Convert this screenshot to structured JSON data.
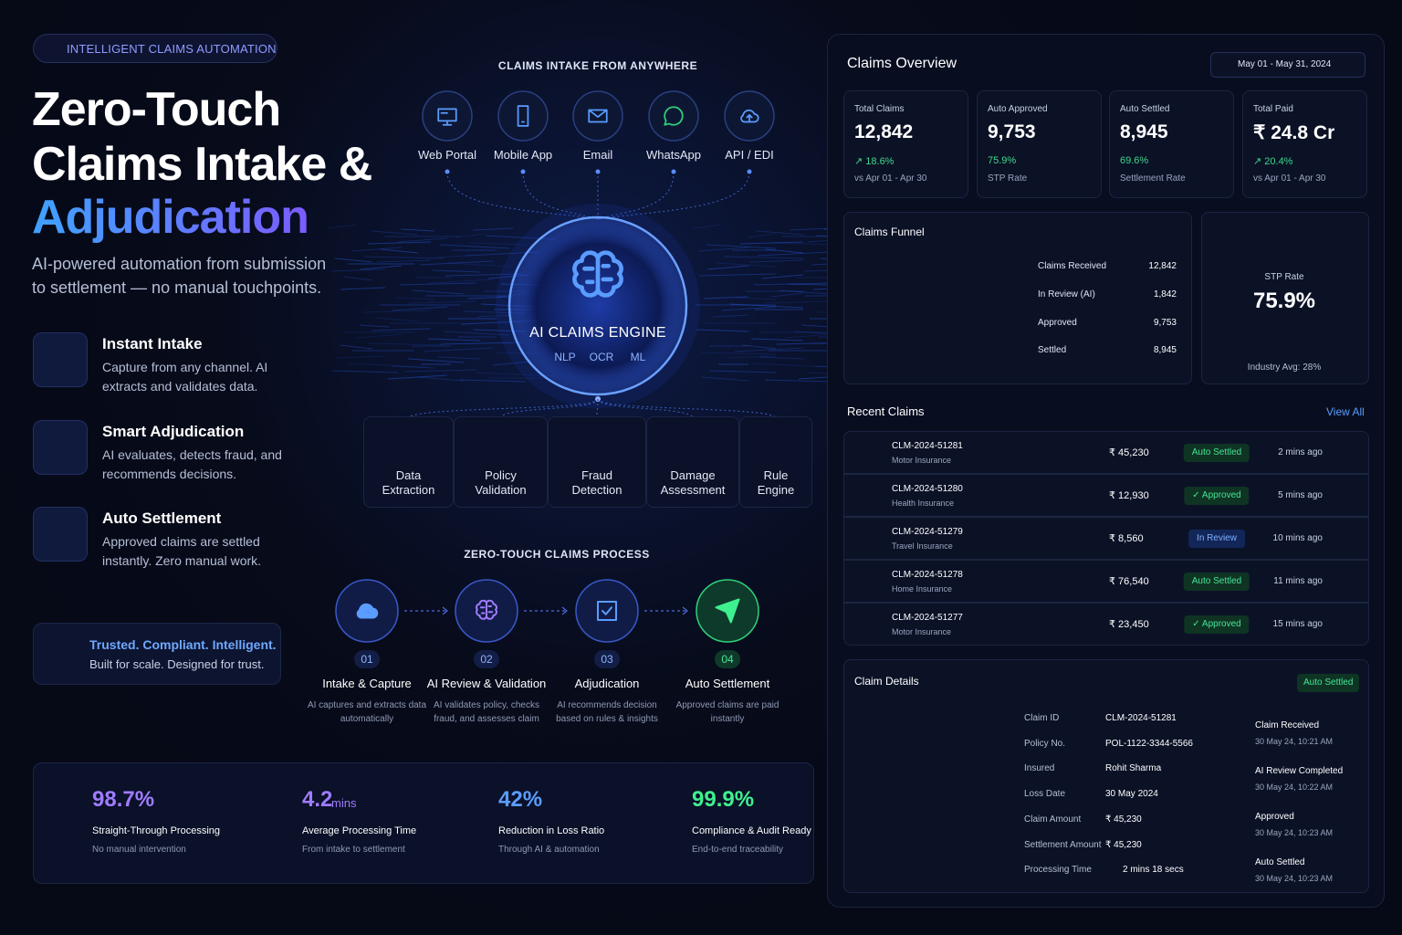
{
  "badge": "INTELLIGENT CLAIMS AUTOMATION",
  "hero": {
    "title_line1": "Zero-Touch",
    "title_line2": "Claims Intake &",
    "title_highlight": "Adjudication",
    "subtitle": "AI-powered automation from submission to settlement — no manual touchpoints."
  },
  "features": [
    {
      "title": "Instant Intake",
      "text": "Capture from any channel. AI extracts and validates data."
    },
    {
      "title": "Smart Adjudication",
      "text": "AI evaluates, detects fraud, and recommends decisions."
    },
    {
      "title": "Auto Settlement",
      "text": "Approved claims are settled instantly. Zero manual work."
    }
  ],
  "trust": {
    "title": "Trusted. Compliant. Intelligent.",
    "text": "Built for scale. Designed for trust."
  },
  "intake": {
    "heading": "CLAIMS INTAKE FROM ANYWHERE",
    "channels": [
      "Web Portal",
      "Mobile App",
      "Email",
      "WhatsApp",
      "API / EDI"
    ]
  },
  "engine": {
    "title": "AI CLAIMS ENGINE",
    "tags": [
      "NLP",
      "OCR",
      "ML"
    ]
  },
  "modules": [
    "Data Extraction",
    "Policy Validation",
    "Fraud Detection",
    "Damage Assessment",
    "Rule Engine"
  ],
  "process": {
    "heading": "ZERO-TOUCH CLAIMS PROCESS",
    "steps": [
      {
        "number": "01",
        "title": "Intake & Capture",
        "text": "AI captures and extracts data automatically"
      },
      {
        "number": "02",
        "title": "AI Review & Validation",
        "text": "AI validates policy, checks fraud, and assesses claim"
      },
      {
        "number": "03",
        "title": "Adjudication",
        "text": "AI recommends decision based on rules & insights"
      },
      {
        "number": "04",
        "title": "Auto Settlement",
        "text": "Approved claims are paid instantly"
      }
    ]
  },
  "stats": [
    {
      "value": "98.7%",
      "title": "Straight-Through Processing",
      "text": "No manual intervention"
    },
    {
      "value": "4.2",
      "unit": "mins",
      "title": "Average Processing Time",
      "text": "From intake to settlement"
    },
    {
      "value": "42%",
      "title": "Reduction in Loss Ratio",
      "text": "Through AI & automation"
    },
    {
      "value": "99.9%",
      "title": "Compliance & Audit Ready",
      "text": "End-to-end traceability"
    }
  ],
  "overview": {
    "title": "Claims Overview",
    "date_range": "May 01 - May 31, 2024",
    "kpis": [
      {
        "label": "Total Claims",
        "value": "12,842",
        "change": "↗ 18.6%",
        "note": "vs Apr 01 - Apr 30"
      },
      {
        "label": "Auto Approved",
        "value": "9,753",
        "change": "75.9%",
        "note": "STP Rate"
      },
      {
        "label": "Auto Settled",
        "value": "8,945",
        "change": "69.6%",
        "note": "Settlement Rate"
      },
      {
        "label": "Total Paid",
        "value": "₹ 24.8 Cr",
        "change": "↗ 20.4%",
        "note": "vs Apr 01 - Apr 30"
      }
    ]
  },
  "funnel": {
    "title": "Claims Funnel",
    "stages": [
      {
        "name": "Claims Received",
        "value": "12,842"
      },
      {
        "name": "In Review (AI)",
        "value": "1,842"
      },
      {
        "name": "Approved",
        "value": "9,753"
      },
      {
        "name": "Settled",
        "value": "8,945"
      }
    ],
    "stp_label": "STP Rate",
    "stp_rate": {
      "value": 75.9,
      "label": "75.9%"
    },
    "industry_avg": "Industry Avg: 28%"
  },
  "recent": {
    "title": "Recent Claims",
    "view_all": "View All",
    "rows": [
      {
        "id": "CLM-2024-51281",
        "type": "Motor Insurance",
        "amount": "₹ 45,230",
        "status": "Auto Settled",
        "time": "2 mins ago"
      },
      {
        "id": "CLM-2024-51280",
        "type": "Health Insurance",
        "amount": "₹ 12,930",
        "status": "✓ Approved",
        "time": "5 mins ago"
      },
      {
        "id": "CLM-2024-51279",
        "type": "Travel Insurance",
        "amount": "₹ 8,560",
        "status": "In Review",
        "time": "10 mins ago"
      },
      {
        "id": "CLM-2024-51278",
        "type": "Home Insurance",
        "amount": "₹ 76,540",
        "status": "Auto Settled",
        "time": "11 mins ago"
      },
      {
        "id": "CLM-2024-51277",
        "type": "Motor Insurance",
        "amount": "₹ 23,450",
        "status": "✓ Approved",
        "time": "15 mins ago"
      }
    ]
  },
  "details": {
    "title": "Claim Details",
    "status": "Auto Settled",
    "fields": [
      [
        "Claim ID",
        "CLM-2024-51281"
      ],
      [
        "Policy No.",
        "POL-1122-3344-5566"
      ],
      [
        "Insured",
        "Rohit Sharma"
      ],
      [
        "Loss Date",
        "30 May 2024"
      ],
      [
        "Claim Amount",
        "₹ 45,230"
      ],
      [
        "Settlement Amount",
        "₹ 45,230"
      ],
      [
        "Processing Time",
        "2 mins 18 secs"
      ]
    ],
    "timeline": [
      {
        "event": "Claim Received",
        "time": "30 May 24, 10:21 AM"
      },
      {
        "event": "AI Review Completed",
        "time": "30 May 24, 10:22 AM"
      },
      {
        "event": "Approved",
        "time": "30 May 24, 10:23 AM"
      },
      {
        "event": "Auto Settled",
        "time": "30 May 24, 10:23 AM"
      }
    ]
  }
}
